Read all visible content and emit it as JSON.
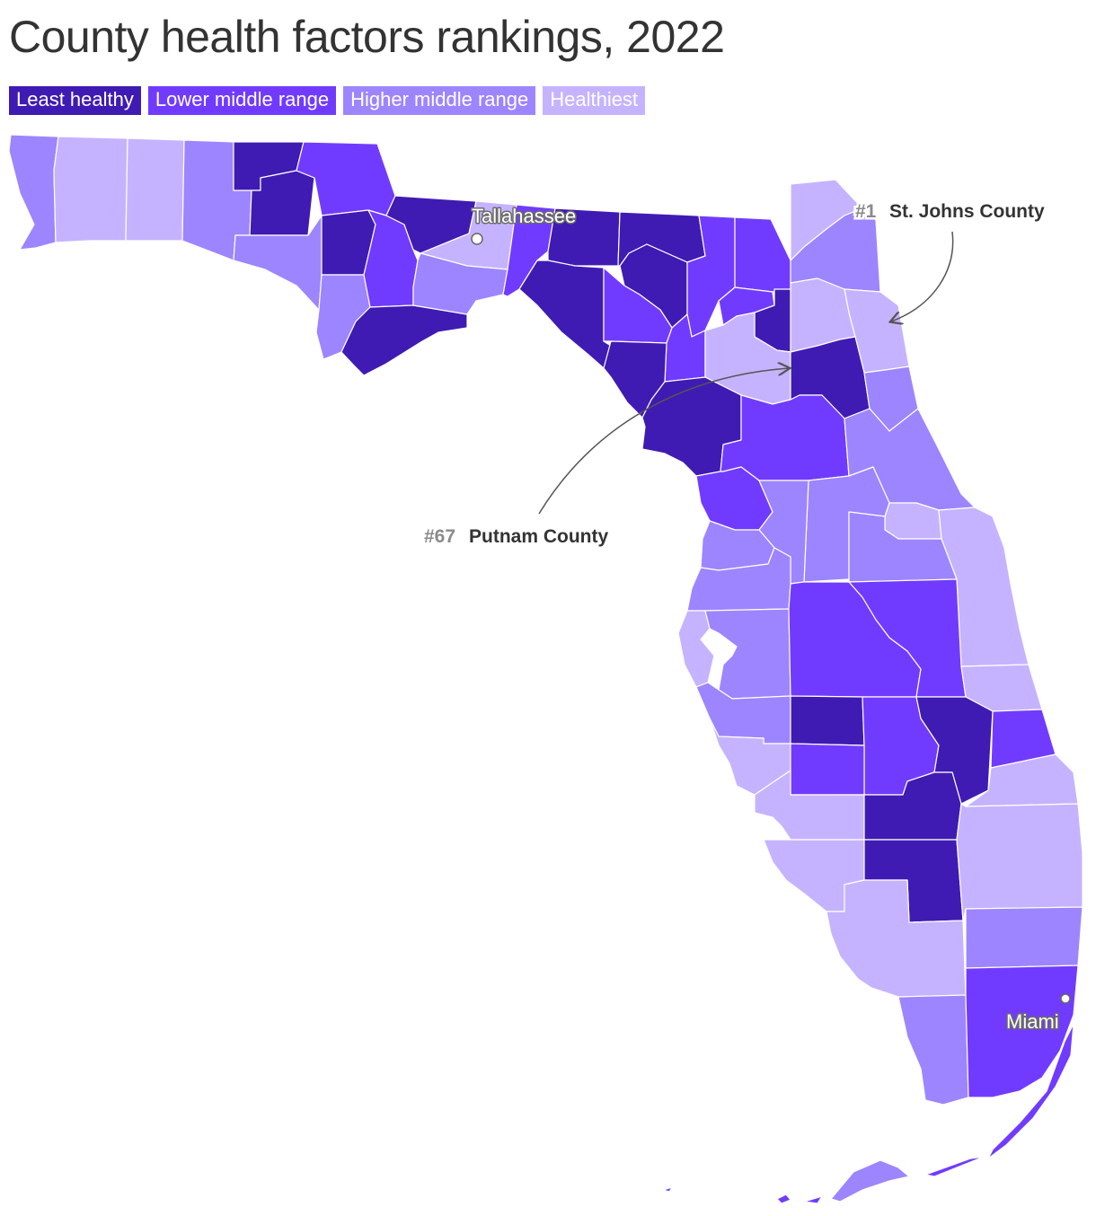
{
  "title": "County health factors rankings, 2022",
  "legend": [
    {
      "label": "Least healthy",
      "color": "#3f1bb3"
    },
    {
      "label": "Lower middle range",
      "color": "#713bff"
    },
    {
      "label": "Higher middle range",
      "color": "#9d85ff"
    },
    {
      "label": "Healthiest",
      "color": "#c6b3ff"
    }
  ],
  "cities": {
    "tallahassee": "Tallahassee",
    "miami": "Miami"
  },
  "annotations": {
    "top": {
      "rank": "#1",
      "county": "St. Johns County"
    },
    "bottom": {
      "rank": "#67",
      "county": "Putnam County"
    }
  }
}
